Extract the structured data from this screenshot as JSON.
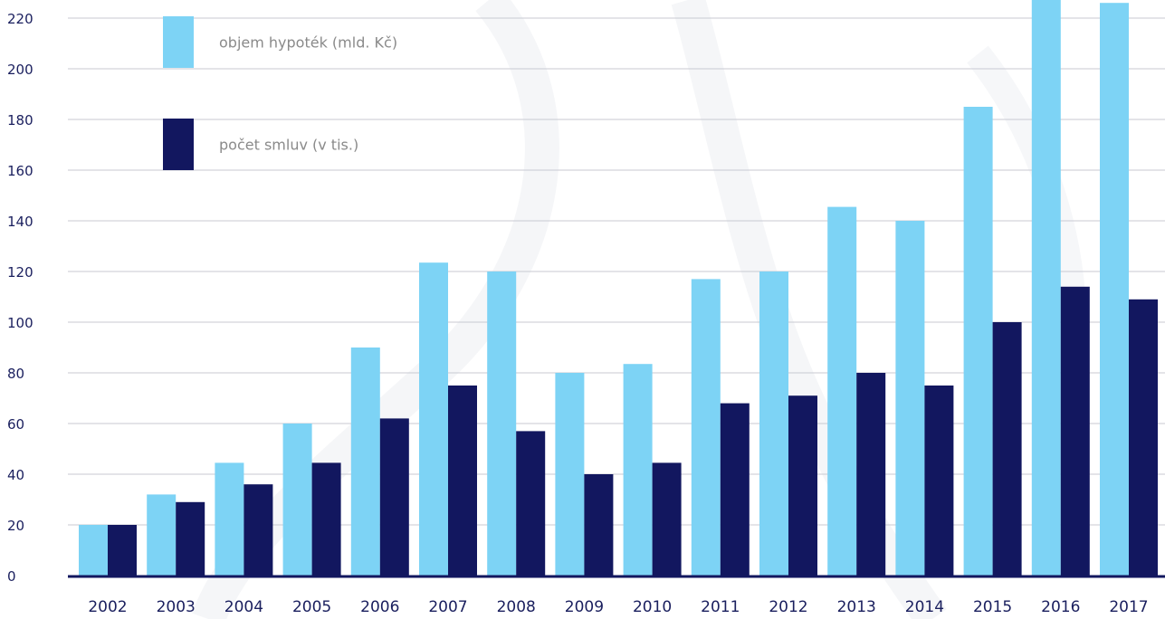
{
  "chart_data": {
    "type": "bar",
    "categories": [
      "2002",
      "2003",
      "2004",
      "2005",
      "2006",
      "2007",
      "2008",
      "2009",
      "2010",
      "2011",
      "2012",
      "2013",
      "2014",
      "2015",
      "2016",
      "2017"
    ],
    "series": [
      {
        "name": "objem hypoték (mld. Kč)",
        "color": "#7dd3f5",
        "values": [
          20,
          32,
          44.5,
          60,
          90,
          123.5,
          120,
          80,
          83.5,
          117,
          120,
          145.5,
          140,
          185,
          230,
          226
        ]
      },
      {
        "name": "počet smluv (v tis.)",
        "color": "#12175f",
        "values": [
          20,
          29,
          36,
          44.5,
          62,
          75,
          57,
          40,
          44.5,
          68,
          71,
          80,
          75,
          100,
          114,
          109
        ]
      }
    ],
    "ylim": [
      0,
      220
    ],
    "yticks": [
      0,
      20,
      40,
      60,
      80,
      100,
      120,
      140,
      160,
      180,
      200,
      220
    ],
    "grid": true,
    "legend_position": "top-left",
    "xlabel": "",
    "ylabel": ""
  }
}
